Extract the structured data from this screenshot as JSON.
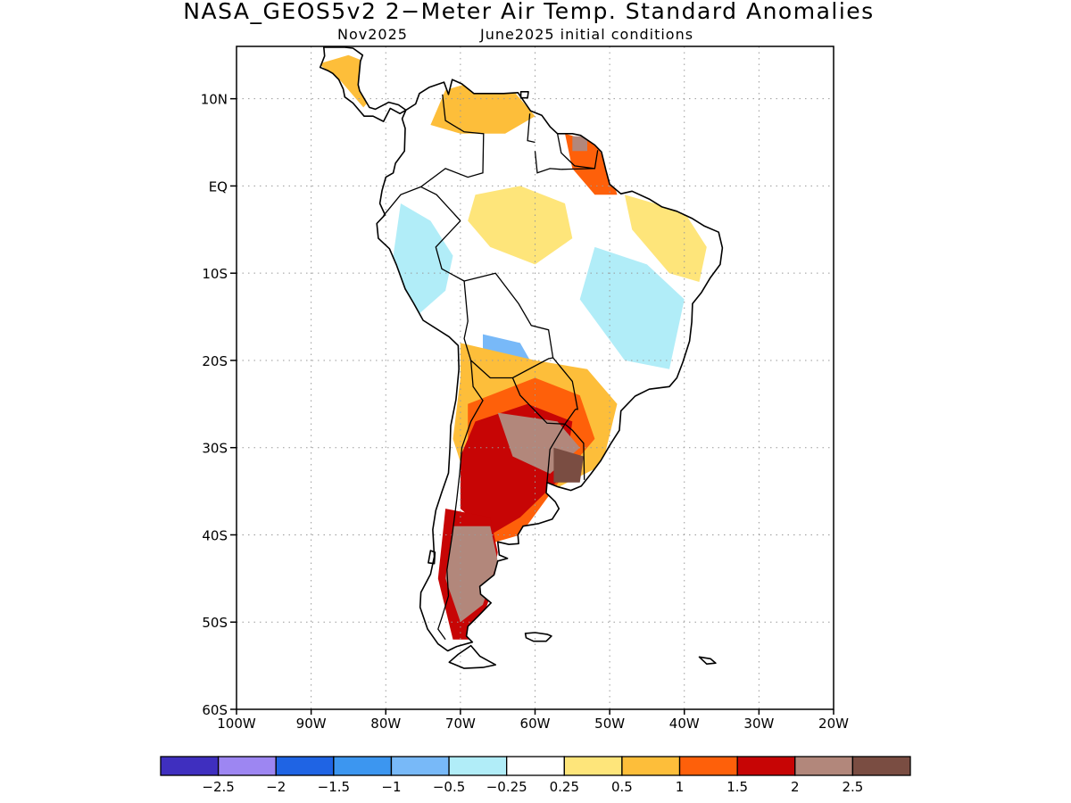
{
  "title": "NASA_GEOS5v2 2−Meter Air Temp. Standard Anomalies",
  "subtitle_left": "Nov2025",
  "subtitle_right": "June2025 initial conditions",
  "map": {
    "lat_range": [
      -60,
      16
    ],
    "lon_range": [
      -100,
      -20
    ],
    "lat_ticks": [
      {
        "value": 10,
        "label": "10N"
      },
      {
        "value": 0,
        "label": "EQ"
      },
      {
        "value": -10,
        "label": "10S"
      },
      {
        "value": -20,
        "label": "20S"
      },
      {
        "value": -30,
        "label": "30S"
      },
      {
        "value": -40,
        "label": "40S"
      },
      {
        "value": -50,
        "label": "50S"
      },
      {
        "value": -60,
        "label": "60S"
      }
    ],
    "lon_ticks": [
      {
        "value": -100,
        "label": "100W"
      },
      {
        "value": -90,
        "label": "90W"
      },
      {
        "value": -80,
        "label": "80W"
      },
      {
        "value": -70,
        "label": "70W"
      },
      {
        "value": -60,
        "label": "60W"
      },
      {
        "value": -50,
        "label": "50W"
      },
      {
        "value": -40,
        "label": "40W"
      },
      {
        "value": -30,
        "label": "30W"
      },
      {
        "value": -20,
        "label": "20W"
      }
    ],
    "grid": "dotted",
    "coastline_color": "#000000"
  },
  "colorbar": {
    "colors": [
      "#3f2fbf",
      "#9d86f2",
      "#1f64e4",
      "#3c96f0",
      "#78b9f8",
      "#b1edf8",
      "#ffffff",
      "#fee57a",
      "#fdbe3a",
      "#fe600a",
      "#c70505",
      "#b2877b",
      "#7a4d42"
    ],
    "labels": [
      "−2.5",
      "−2",
      "−1.5",
      "−1",
      "−0.5",
      "−0.25",
      "0.25",
      "0.5",
      "1",
      "1.5",
      "2",
      "2.5"
    ]
  },
  "anomaly_regions": [
    {
      "name": "central-america-warm",
      "color": "#fdbe3a",
      "points": [
        [
          -85,
          15
        ],
        [
          -82,
          14
        ],
        [
          -81,
          11
        ],
        [
          -83,
          9
        ],
        [
          -86,
          12
        ],
        [
          -89,
          14
        ]
      ]
    },
    {
      "name": "colombia-venezuela-warm",
      "color": "#fdbe3a",
      "points": [
        [
          -72,
          11
        ],
        [
          -68,
          12
        ],
        [
          -63,
          11
        ],
        [
          -60,
          8
        ],
        [
          -64,
          6
        ],
        [
          -70,
          6
        ],
        [
          -74,
          7
        ]
      ]
    },
    {
      "name": "guianas-warm",
      "color": "#fe600a",
      "points": [
        [
          -56,
          6
        ],
        [
          -52,
          5
        ],
        [
          -50,
          2
        ],
        [
          -49,
          -1
        ],
        [
          -52,
          -1
        ],
        [
          -55,
          2
        ]
      ]
    },
    {
      "name": "guianas-hot",
      "color": "#b2877b",
      "points": [
        [
          -55,
          5.7
        ],
        [
          -53,
          5.7
        ],
        [
          -53,
          4
        ],
        [
          -55,
          4
        ]
      ]
    },
    {
      "name": "ne-brazil-warm",
      "color": "#fee57a",
      "points": [
        [
          -48,
          -1
        ],
        [
          -40,
          -3
        ],
        [
          -37,
          -7
        ],
        [
          -38,
          -11
        ],
        [
          -42,
          -10
        ],
        [
          -47,
          -5
        ]
      ]
    },
    {
      "name": "amazon-warm",
      "color": "#fee57a",
      "points": [
        [
          -68,
          -1
        ],
        [
          -62,
          0
        ],
        [
          -56,
          -2
        ],
        [
          -55,
          -6
        ],
        [
          -60,
          -9
        ],
        [
          -66,
          -7
        ],
        [
          -69,
          -4
        ]
      ]
    },
    {
      "name": "amazon-cool",
      "color": "#b1edf8",
      "points": [
        [
          -78,
          -2
        ],
        [
          -74,
          -4
        ],
        [
          -71,
          -8
        ],
        [
          -72,
          -12
        ],
        [
          -76,
          -15
        ],
        [
          -79,
          -8
        ]
      ]
    },
    {
      "name": "brazil-cool",
      "color": "#b1edf8",
      "points": [
        [
          -52,
          -7
        ],
        [
          -45,
          -9
        ],
        [
          -40,
          -13
        ],
        [
          -42,
          -21
        ],
        [
          -48,
          -20
        ],
        [
          -54,
          -13
        ]
      ]
    },
    {
      "name": "bolivia-cool",
      "color": "#78b9f8",
      "points": [
        [
          -67,
          -17
        ],
        [
          -62,
          -18
        ],
        [
          -60,
          -21
        ],
        [
          -64,
          -21
        ],
        [
          -67,
          -20
        ]
      ]
    },
    {
      "name": "paraguay-warm",
      "color": "#fdbe3a",
      "points": [
        [
          -70,
          -18
        ],
        [
          -60,
          -20
        ],
        [
          -53,
          -21
        ],
        [
          -49,
          -25
        ],
        [
          -51,
          -32
        ],
        [
          -58,
          -35
        ],
        [
          -64,
          -40
        ],
        [
          -68,
          -37
        ],
        [
          -71,
          -29
        ],
        [
          -70,
          -22
        ]
      ]
    },
    {
      "name": "argentina-warm",
      "color": "#fe600a",
      "points": [
        [
          -69,
          -25
        ],
        [
          -60,
          -22
        ],
        [
          -54,
          -24
        ],
        [
          -52,
          -29
        ],
        [
          -56,
          -33
        ],
        [
          -62,
          -40
        ],
        [
          -66,
          -41
        ],
        [
          -69,
          -34
        ]
      ]
    },
    {
      "name": "argentina-hot",
      "color": "#c70505",
      "points": [
        [
          -68,
          -27
        ],
        [
          -61,
          -25
        ],
        [
          -55,
          -27
        ],
        [
          -56,
          -33
        ],
        [
          -62,
          -38
        ],
        [
          -66,
          -40
        ],
        [
          -70,
          -37
        ],
        [
          -70,
          -31
        ]
      ]
    },
    {
      "name": "argentina-very-hot",
      "color": "#b2877b",
      "points": [
        [
          -65,
          -26
        ],
        [
          -57,
          -27
        ],
        [
          -54,
          -30
        ],
        [
          -58,
          -33
        ],
        [
          -63,
          -31
        ]
      ]
    },
    {
      "name": "patagonia-hot",
      "color": "#c70505",
      "points": [
        [
          -72,
          -37
        ],
        [
          -66,
          -38
        ],
        [
          -65,
          -42
        ],
        [
          -66,
          -47
        ],
        [
          -68,
          -52
        ],
        [
          -71,
          -52
        ],
        [
          -73,
          -45
        ]
      ]
    },
    {
      "name": "patagonia-very-hot",
      "color": "#b2877b",
      "points": [
        [
          -71,
          -39
        ],
        [
          -66,
          -39
        ],
        [
          -65,
          -43
        ],
        [
          -67,
          -48
        ],
        [
          -70,
          -50
        ],
        [
          -72,
          -45
        ]
      ]
    },
    {
      "name": "uruguay-very-hot",
      "color": "#7a4d42",
      "points": [
        [
          -57.5,
          -30
        ],
        [
          -53.5,
          -31
        ],
        [
          -54,
          -34
        ],
        [
          -57.5,
          -34
        ]
      ]
    }
  ]
}
